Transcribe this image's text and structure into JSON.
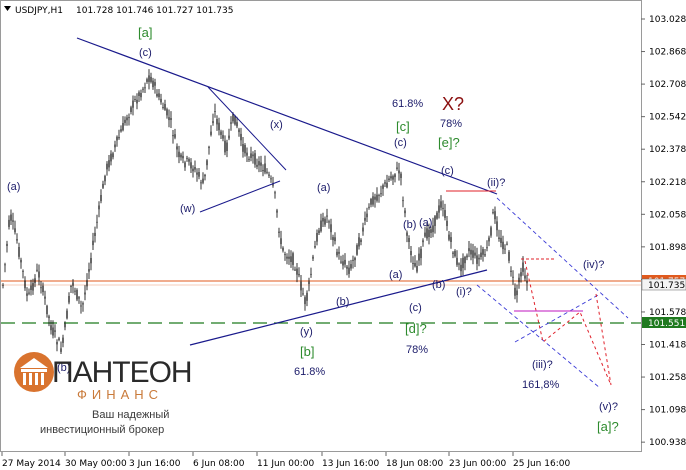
{
  "header": {
    "symbol": "USDJPY,H1",
    "ohlc": "101.728 101.746 101.727 101.735"
  },
  "logo": {
    "name": "ПАНТЕОН",
    "sub": "ФИНАНС",
    "tagline1": "Ваш надежный",
    "tagline2": "инвестиционный брокер"
  },
  "colors": {
    "background": "#ffffff",
    "candles": "#000000",
    "trendline": "#1a1a8c",
    "dashed_projection": "#3b3bd6",
    "red_dashed": "#e0202a",
    "orange_line": "#e05a1e",
    "green_dashed": "#1f7a1f",
    "magenta": "#cc44cc",
    "label_navy": "#1c1c6a",
    "label_green": "#2e8b2e",
    "label_red": "#8b1010",
    "current_price_tag": "#f4f4f4",
    "support_price_tag": "#1f7a1f"
  },
  "chart_data": {
    "type": "candlestick",
    "title": "USDJPY,H1",
    "y_ticks": [
      "103.028",
      "102.868",
      "102.708",
      "102.542",
      "102.378",
      "102.218",
      "102.058",
      "101.898",
      "101.738",
      "101.578",
      "101.418",
      "101.258",
      "101.098",
      "100.938"
    ],
    "x_ticks": [
      "27 May 2014",
      "30 May 00:00",
      "3 Jun 16:00",
      "6 Jun 08:00",
      "11 Jun 00:00",
      "13 Jun 16:00",
      "18 Jun 08:00",
      "23 Jun 00:00",
      "25 Jun 16:00"
    ],
    "ylim": [
      100.91,
      103.08
    ],
    "current_price": "101.735",
    "orange_line_price": "101.757",
    "support_line_price": "101.551",
    "wave_labels": {
      "a1": "(a)",
      "b1": "(b)",
      "c1": "[a]",
      "c2": "(c)",
      "w": "(w)",
      "x": "(x)",
      "y": "(y)",
      "b_green": "[b]",
      "fib_618_low": "61.8%",
      "a2": "(a)",
      "b2": "(b)",
      "c3": "(c)",
      "fib_618_high": "61.8%",
      "c_green": "[c]",
      "c4": "(c)",
      "X": "X?",
      "fib_78_top": "78%",
      "e_green": "[e]?",
      "c5": "(c)",
      "b3": "(b)",
      "a3": "(a)",
      "a4": "(a)",
      "c6": "(c)",
      "d_green": "[d]?",
      "fib_78_low": "78%",
      "b4": "(b)",
      "i": "(i)?",
      "ii": "(ii)?",
      "iii": "(iii)?",
      "fib_1618": "161,8%",
      "iv": "(iv)?",
      "v": "(v)?",
      "a_green_end": "[a]?"
    },
    "projections": {
      "note": "Elliott-wave forecast path after 25 Jun"
    }
  }
}
